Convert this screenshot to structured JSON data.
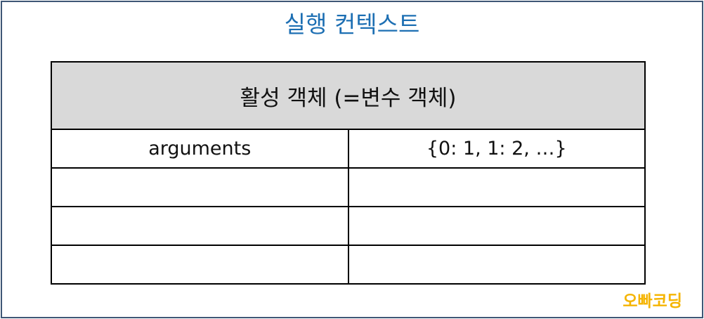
{
  "title": "실행 컨텍스트",
  "table": {
    "header": "활성 객체 (=변수 객체)",
    "rows": [
      {
        "key": "arguments",
        "value": "{0: 1, 1: 2, …}"
      },
      {
        "key": "",
        "value": ""
      },
      {
        "key": "",
        "value": ""
      },
      {
        "key": "",
        "value": ""
      }
    ]
  },
  "watermark": "오빠코딩",
  "colors": {
    "title": "#1d6fb3",
    "frame_border": "#3e5776",
    "header_bg": "#d9d9d9",
    "watermark": "#f5b400"
  }
}
